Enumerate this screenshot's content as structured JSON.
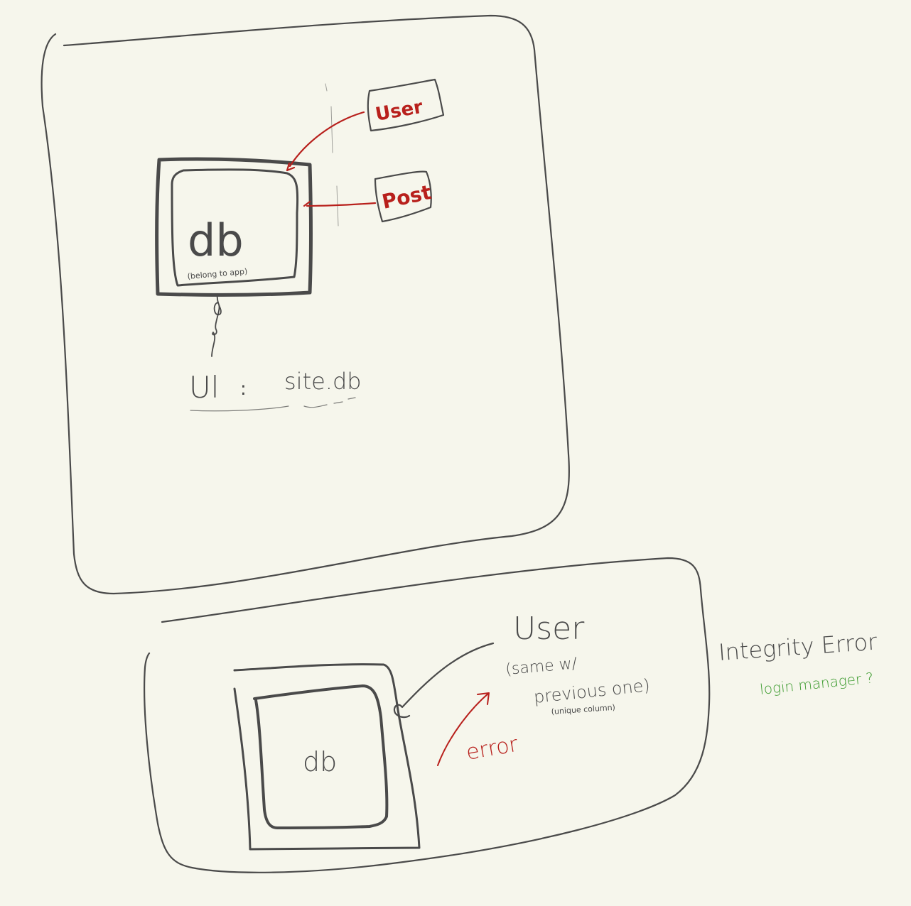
{
  "colors": {
    "background": "#f6f6ec",
    "ink": "#4a4a4a",
    "red_ink": "#b8201c",
    "green_ink": "#3a9a2c"
  },
  "sketch1": {
    "db_label": "db",
    "db_note": "(belong to app)",
    "user_box": "User",
    "post_box": "Post",
    "uri_label": "Ul",
    "uri_colon": ":",
    "uri_value": "site.db"
  },
  "sketch2": {
    "db_label": "db",
    "user_title": "User",
    "user_note_line1": "(same w/",
    "user_note_line2": "previous one)",
    "user_note_small": "(unique column)",
    "error_label": "error",
    "integrity_label": "Integrity Error",
    "login_note": "login manager ?"
  }
}
